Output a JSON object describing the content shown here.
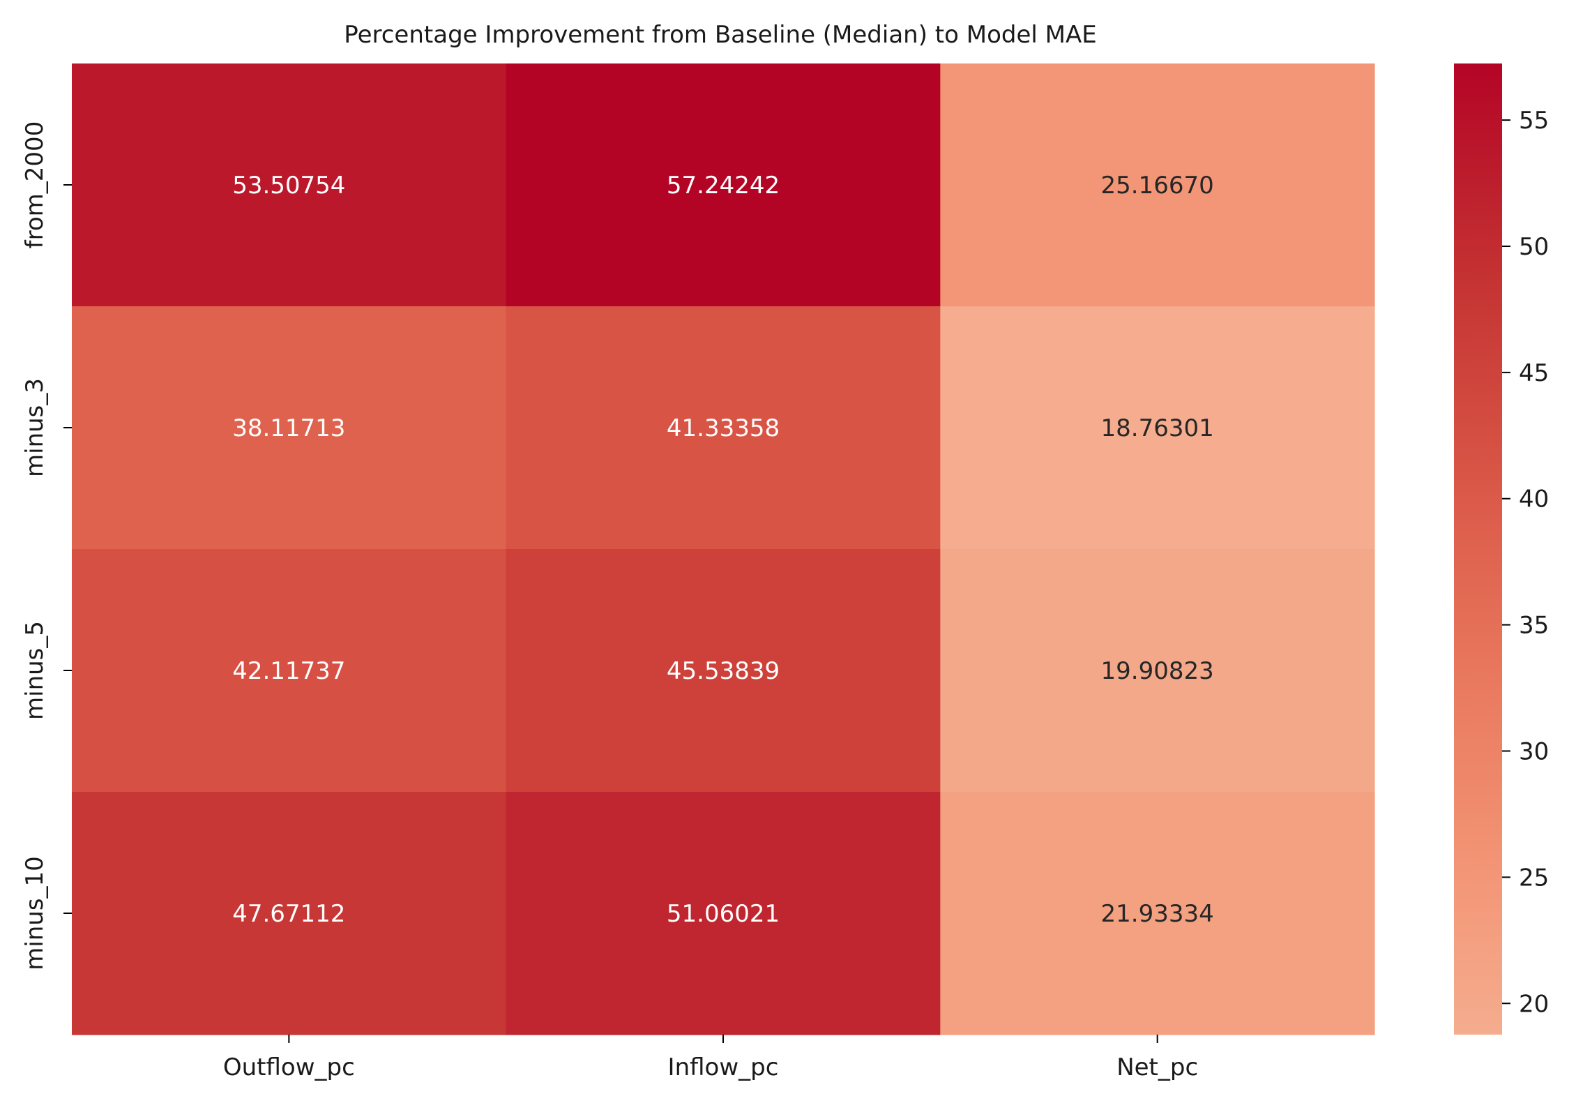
{
  "chart_data": {
    "type": "heatmap",
    "title": "Percentage Improvement from Baseline (Median) to Model MAE",
    "xlabel": "",
    "ylabel": "",
    "columns": [
      "Outflow_pc",
      "Inflow_pc",
      "Net_pc"
    ],
    "rows": [
      "from_2000",
      "minus_3",
      "minus_5",
      "minus_10"
    ],
    "values": [
      [
        53.50754,
        57.24242,
        25.1667
      ],
      [
        38.11713,
        41.33358,
        18.76301
      ],
      [
        42.11737,
        45.53839,
        19.90823
      ],
      [
        47.67112,
        51.06021,
        21.93334
      ]
    ],
    "value_labels": [
      [
        "53.50754",
        "57.24242",
        "25.16670"
      ],
      [
        "38.11713",
        "41.33358",
        "18.76301"
      ],
      [
        "42.11737",
        "45.53839",
        "19.90823"
      ],
      [
        "47.67112",
        "51.06021",
        "21.93334"
      ]
    ],
    "colormap": "coolwarm (upper half)",
    "color_range": [
      18.76301,
      57.24242
    ],
    "colorbar_ticks": [
      20,
      25,
      30,
      35,
      40,
      45,
      50,
      55
    ],
    "colorbar_tick_labels": [
      "20",
      "25",
      "30",
      "35",
      "40",
      "45",
      "50",
      "55"
    ],
    "legend": "colorbar-right",
    "grid": false
  }
}
